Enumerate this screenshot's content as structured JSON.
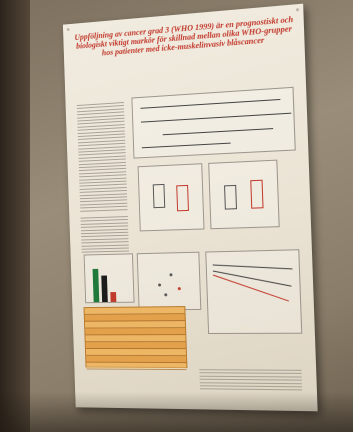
{
  "poster": {
    "title": "Uppföljning av cancer grad 3 (WHO 1999) är en prognostiskt och biologiskt viktigt markör för skillnad mellan olika WHO-grupper hos patienter med icke-muskelinvasiv blåscancer",
    "authors": "",
    "sections": {
      "intro": "",
      "results": "",
      "conclusion": ""
    }
  },
  "colors": {
    "title_red": "#c2362a",
    "table_orange": "#e2a14a",
    "bar_green": "#1f7a3a",
    "bar_dark": "#1c1c1c",
    "bar_red": "#c0392b"
  },
  "chart_data": {
    "type": "bar",
    "categories": [
      "",
      "",
      ""
    ],
    "values": [
      0.85,
      0.68,
      0.25
    ],
    "title": "",
    "xlabel": "",
    "ylabel": ""
  }
}
